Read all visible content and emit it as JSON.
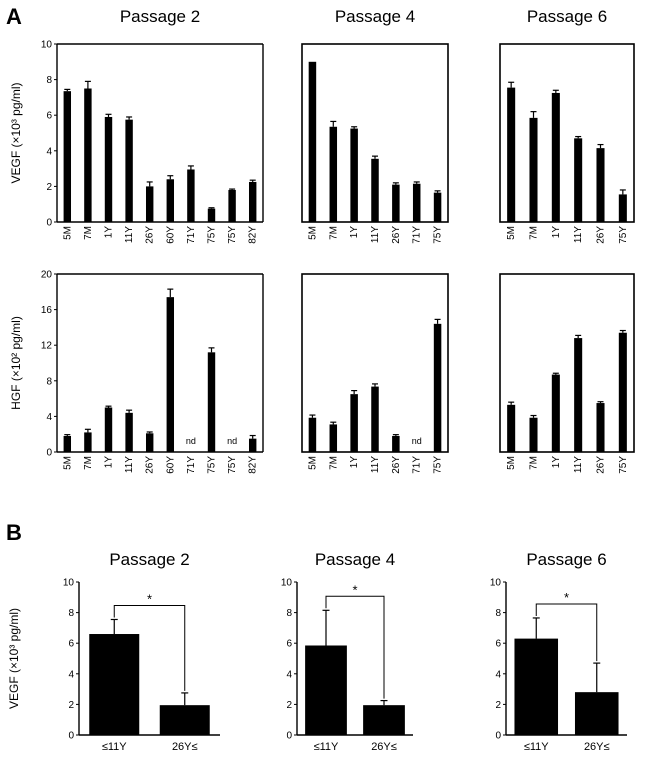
{
  "panels": {
    "a_label": "A",
    "b_label": "B"
  },
  "chart_data": [
    {
      "id": "A-VEGF-P2",
      "type": "bar",
      "title": "Passage 2",
      "ylabel": "VEGF (×10³ pg/ml)",
      "ylim": [
        0,
        10
      ],
      "yticks": [
        0,
        2,
        4,
        6,
        8,
        10
      ],
      "categories": [
        "5M",
        "7M",
        "1Y",
        "11Y",
        "26Y",
        "60Y",
        "71Y",
        "75Y",
        "75Y",
        "82Y"
      ],
      "values": [
        7.35,
        7.5,
        5.9,
        5.75,
        2.0,
        2.4,
        2.95,
        0.75,
        1.8,
        2.25
      ],
      "errors": [
        0.1,
        0.4,
        0.15,
        0.15,
        0.25,
        0.2,
        0.2,
        0.05,
        0.05,
        0.1
      ]
    },
    {
      "id": "A-VEGF-P4",
      "type": "bar",
      "title": "Passage 4",
      "ylim": [
        0,
        10
      ],
      "categories": [
        "5M",
        "7M",
        "1Y",
        "11Y",
        "26Y",
        "71Y",
        "75Y"
      ],
      "values": [
        9.0,
        5.35,
        5.25,
        3.55,
        2.1,
        2.15,
        1.65
      ],
      "errors": [
        0.0,
        0.3,
        0.1,
        0.15,
        0.1,
        0.1,
        0.1
      ]
    },
    {
      "id": "A-VEGF-P6",
      "type": "bar",
      "title": "Passage 6",
      "ylim": [
        0,
        10
      ],
      "categories": [
        "5M",
        "7M",
        "1Y",
        "11Y",
        "26Y",
        "75Y"
      ],
      "values": [
        7.55,
        5.85,
        7.25,
        4.7,
        4.15,
        1.55
      ],
      "errors": [
        0.3,
        0.35,
        0.15,
        0.1,
        0.2,
        0.25
      ]
    },
    {
      "id": "A-HGF-P2",
      "type": "bar",
      "ylabel": "HGF (×10² pg/ml)",
      "ylim": [
        0,
        20
      ],
      "yticks": [
        0,
        4,
        8,
        12,
        16,
        20
      ],
      "categories": [
        "5M",
        "7M",
        "1Y",
        "11Y",
        "26Y",
        "60Y",
        "71Y",
        "75Y",
        "75Y",
        "82Y"
      ],
      "values": [
        1.8,
        2.2,
        5.0,
        4.4,
        2.1,
        17.4,
        null,
        11.2,
        null,
        1.5
      ],
      "errors": [
        0.15,
        0.35,
        0.15,
        0.3,
        0.15,
        0.9,
        null,
        0.5,
        null,
        0.35
      ],
      "annotations": [
        "",
        "",
        "",
        "",
        "",
        "",
        "nd",
        "",
        "nd",
        ""
      ]
    },
    {
      "id": "A-HGF-P4",
      "type": "bar",
      "ylim": [
        0,
        20
      ],
      "categories": [
        "5M",
        "7M",
        "1Y",
        "11Y",
        "26Y",
        "71Y",
        "75Y"
      ],
      "values": [
        3.85,
        3.1,
        6.5,
        7.35,
        1.8,
        null,
        14.4
      ],
      "errors": [
        0.3,
        0.25,
        0.4,
        0.3,
        0.15,
        null,
        0.5
      ],
      "annotations": [
        "",
        "",
        "",
        "",
        "",
        "nd",
        ""
      ]
    },
    {
      "id": "A-HGF-P6",
      "type": "bar",
      "ylim": [
        0,
        20
      ],
      "categories": [
        "5M",
        "7M",
        "1Y",
        "11Y",
        "26Y",
        "75Y"
      ],
      "values": [
        5.3,
        3.85,
        8.7,
        12.8,
        5.5,
        13.4
      ],
      "errors": [
        0.3,
        0.25,
        0.15,
        0.3,
        0.15,
        0.25
      ]
    },
    {
      "id": "B-P2",
      "type": "bar",
      "title": "Passage 2",
      "ylabel": "VEGF (×10³ pg/ml)",
      "ylim": [
        0,
        10
      ],
      "yticks": [
        0,
        2,
        4,
        6,
        8,
        10
      ],
      "categories": [
        "≤11Y",
        "26Y≤"
      ],
      "values": [
        6.6,
        1.95
      ],
      "errors": [
        0.95,
        0.8
      ],
      "significance": "*"
    },
    {
      "id": "B-P4",
      "type": "bar",
      "title": "Passage 4",
      "ylim": [
        0,
        10
      ],
      "yticks": [
        0,
        2,
        4,
        6,
        8,
        10
      ],
      "categories": [
        "≤11Y",
        "26Y≤"
      ],
      "values": [
        5.85,
        1.95
      ],
      "errors": [
        2.3,
        0.3
      ],
      "significance": "*"
    },
    {
      "id": "B-P6",
      "type": "bar",
      "title": "Passage 6",
      "ylim": [
        0,
        10
      ],
      "yticks": [
        0,
        2,
        4,
        6,
        8,
        10
      ],
      "categories": [
        "≤11Y",
        "26Y≤"
      ],
      "values": [
        6.3,
        2.8
      ],
      "errors": [
        1.35,
        1.9
      ],
      "significance": "*"
    }
  ]
}
